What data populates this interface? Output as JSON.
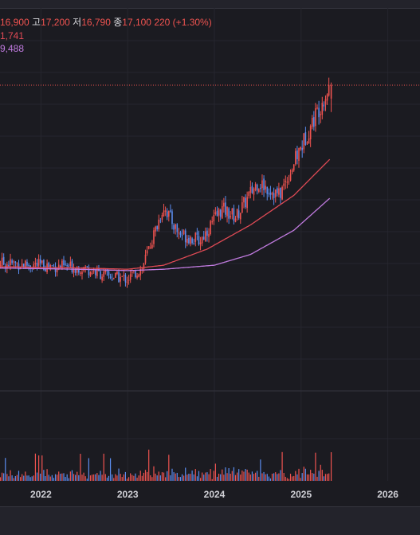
{
  "legend": {
    "open_label": "",
    "open_value": "16,900",
    "high_label": "고",
    "high_value": "17,200",
    "low_label": "저",
    "low_value": "16,790",
    "close_label": "종",
    "close_value": "17,100",
    "change_text": "220 (+1.30%)",
    "ma1_value": "1,741",
    "ma2_value": "9,488"
  },
  "colors": {
    "background": "#1b1b21",
    "up": "#ef5350",
    "down": "#5b8def",
    "ma1": "#e04a55",
    "ma2": "#c17be0",
    "last_price_line": "#ef5350"
  },
  "chart_data": {
    "type": "candlestick",
    "x_ticks": [
      "2022",
      "2023",
      "2024",
      "2025",
      "2026"
    ],
    "x_range": [
      "2021-06",
      "2026-06"
    ],
    "y_axis": "not shown",
    "last_close": 17100,
    "grid": true,
    "series": [
      {
        "kind": "price",
        "points": [
          {
            "date": "2021-06",
            "price": 10500
          },
          {
            "date": "2022-01",
            "price": 10400
          },
          {
            "date": "2022-07",
            "price": 10300
          },
          {
            "date": "2022-10",
            "price": 10000
          },
          {
            "date": "2023-01",
            "price": 9900
          },
          {
            "date": "2023-03",
            "price": 10300
          },
          {
            "date": "2023-06",
            "price": 12600
          },
          {
            "date": "2023-08",
            "price": 11600
          },
          {
            "date": "2023-11",
            "price": 11300
          },
          {
            "date": "2024-02",
            "price": 12500
          },
          {
            "date": "2024-04",
            "price": 12200
          },
          {
            "date": "2024-07",
            "price": 13500
          },
          {
            "date": "2024-10",
            "price": 13000
          },
          {
            "date": "2025-01",
            "price": 14800
          },
          {
            "date": "2025-03",
            "price": 16000
          },
          {
            "date": "2025-05",
            "price": 17100
          }
        ]
      },
      {
        "kind": "ma1",
        "points": [
          {
            "date": "2021-06",
            "value": 10350
          },
          {
            "date": "2022-06",
            "value": 10300
          },
          {
            "date": "2023-01",
            "value": 10250
          },
          {
            "date": "2023-06",
            "value": 10400
          },
          {
            "date": "2023-12",
            "value": 11000
          },
          {
            "date": "2024-06",
            "value": 11900
          },
          {
            "date": "2024-12",
            "value": 13000
          },
          {
            "date": "2025-05",
            "value": 14350
          }
        ]
      },
      {
        "kind": "ma2",
        "points": [
          {
            "date": "2021-06",
            "value": 10300
          },
          {
            "date": "2022-06",
            "value": 10250
          },
          {
            "date": "2023-01",
            "value": 10200
          },
          {
            "date": "2023-06",
            "value": 10250
          },
          {
            "date": "2024-01",
            "value": 10400
          },
          {
            "date": "2024-06",
            "value": 10800
          },
          {
            "date": "2024-12",
            "value": 11700
          },
          {
            "date": "2025-05",
            "value": 12900
          }
        ]
      }
    ]
  }
}
